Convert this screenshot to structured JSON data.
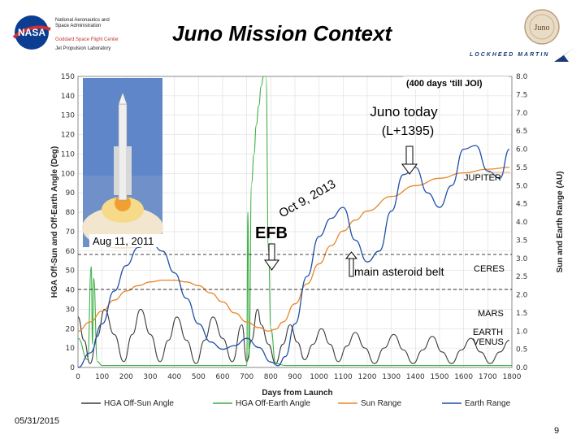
{
  "header": {
    "org_line1": "National Aeronautics and",
    "org_line2": "Space Administration",
    "center_line": "Goddard Space Flight Center",
    "jpl_line": "Jet Propulsion Laboratory",
    "title": "Juno Mission Context",
    "nasa_logo_text": "NASA",
    "juno_badge_text": "Juno",
    "lockheed_text": "LOCKHEED MARTIN"
  },
  "footer": {
    "date": "05/31/2015",
    "page": "9"
  },
  "colors": {
    "hga_sun": "#3a3a3a",
    "hga_earth": "#3cb043",
    "sun_range": "#e8862a",
    "earth_range": "#1f4fa8",
    "grid": "#dddddd"
  },
  "chart_data": {
    "type": "line",
    "xlabel": "Days from Launch",
    "ylabel_left": "HGA Off-Sun and Off-Earth Angle (Deg)",
    "ylabel_right": "Sun and Earth Range (AU)",
    "xlim": [
      0,
      1800
    ],
    "ylim_left": [
      0,
      150
    ],
    "ylim_right": [
      0,
      8
    ],
    "x_ticks": [
      0,
      100,
      200,
      300,
      400,
      500,
      600,
      700,
      800,
      900,
      1000,
      1100,
      1200,
      1300,
      1400,
      1500,
      1600,
      1700,
      1800
    ],
    "y_left_ticks": [
      0,
      10,
      20,
      30,
      40,
      50,
      60,
      70,
      80,
      90,
      100,
      110,
      120,
      130,
      140,
      150
    ],
    "y_right_ticks": [
      "0.0",
      "0.5",
      "1.0",
      "1.5",
      "2.0",
      "2.5",
      "3.0",
      "3.5",
      "4.0",
      "4.5",
      "5.0",
      "5.5",
      "6.0",
      "6.5",
      "7.0",
      "7.5",
      "8.0"
    ],
    "grid": true,
    "legend_position": "bottom",
    "series": [
      {
        "name": "HGA Off-Sun Angle",
        "axis": "left",
        "x": [
          0,
          25,
          50,
          80,
          110,
          150,
          190,
          225,
          260,
          300,
          340,
          375,
          410,
          450,
          490,
          525,
          560,
          600,
          640,
          680,
          700,
          720,
          745,
          760,
          790,
          820,
          850,
          880,
          910,
          940,
          975,
          1010,
          1045,
          1080,
          1115,
          1150,
          1190,
          1230,
          1270,
          1310,
          1350,
          1390,
          1430,
          1470,
          1510,
          1550,
          1590,
          1630,
          1670,
          1710,
          1750,
          1790
        ],
        "y": [
          26,
          14,
          2,
          16,
          30,
          17,
          3,
          17,
          30,
          17,
          3,
          14,
          26,
          14,
          2,
          14,
          26,
          15,
          3,
          22,
          3,
          14,
          30,
          22,
          12,
          2,
          12,
          22,
          13,
          4,
          12,
          20,
          12,
          3,
          11,
          18,
          10,
          2,
          10,
          17,
          9,
          2,
          9,
          16,
          8,
          2,
          9,
          15,
          8,
          2,
          8,
          14
        ]
      },
      {
        "name": "HGA Off-Earth Angle",
        "axis": "left",
        "x": [
          0,
          40,
          55,
          60,
          65,
          80,
          100,
          200,
          300,
          400,
          500,
          600,
          650,
          700,
          705,
          710,
          720,
          730,
          740,
          750,
          760,
          770,
          780,
          790,
          800,
          820,
          860,
          900,
          950,
          1000,
          1100,
          1200,
          1300,
          1400,
          1500,
          1600,
          1700,
          1800
        ],
        "y": [
          15,
          4,
          52,
          12,
          46,
          3,
          1,
          1,
          1,
          1,
          1,
          1,
          1,
          1,
          80,
          5,
          95,
          110,
          125,
          135,
          145,
          150,
          150,
          60,
          20,
          2,
          1,
          1,
          1,
          1,
          1,
          1,
          1,
          1,
          1,
          1,
          1,
          1
        ]
      },
      {
        "name": "Sun Range",
        "axis": "right",
        "x": [
          0,
          50,
          100,
          150,
          200,
          250,
          300,
          350,
          400,
          450,
          500,
          550,
          600,
          650,
          700,
          750,
          790,
          820,
          850,
          900,
          950,
          1000,
          1050,
          1100,
          1150,
          1200,
          1300,
          1400,
          1500,
          1600,
          1700,
          1790
        ],
        "y": [
          1.0,
          1.25,
          1.55,
          1.85,
          2.1,
          2.25,
          2.35,
          2.4,
          2.4,
          2.35,
          2.25,
          2.05,
          1.8,
          1.5,
          1.25,
          1.1,
          1.0,
          1.05,
          1.25,
          1.75,
          2.3,
          2.85,
          3.35,
          3.75,
          4.05,
          4.3,
          4.7,
          5.0,
          5.2,
          5.35,
          5.45,
          5.5
        ]
      },
      {
        "name": "Earth Range",
        "axis": "right",
        "x": [
          0,
          50,
          100,
          150,
          200,
          250,
          300,
          350,
          400,
          450,
          500,
          550,
          600,
          650,
          700,
          750,
          800,
          830,
          860,
          900,
          950,
          1000,
          1050,
          1100,
          1150,
          1200,
          1250,
          1300,
          1350,
          1400,
          1450,
          1500,
          1550,
          1600,
          1650,
          1700,
          1750,
          1790
        ],
        "y": [
          0.0,
          0.4,
          1.2,
          2.1,
          2.8,
          3.3,
          3.45,
          3.2,
          2.6,
          1.9,
          1.2,
          0.7,
          0.5,
          0.6,
          0.8,
          0.55,
          0.15,
          0.05,
          0.3,
          1.2,
          2.5,
          3.6,
          4.1,
          4.4,
          3.5,
          2.9,
          3.2,
          4.3,
          5.3,
          5.5,
          4.8,
          4.4,
          5.0,
          6.0,
          6.1,
          5.4,
          5.2,
          6.0
        ]
      }
    ],
    "annotations": {
      "days_till_joi": "(400 days ‘till JOI)",
      "juno_today_line1": "Juno today",
      "juno_today_line2": "(L+1395)",
      "jupiter": "JUPITER",
      "oct_date": "Oct 9, 2013",
      "efb": "EFB",
      "launch_date": "Aug 11, 2011",
      "asteroid_belt": "main asteroid belt",
      "ceres": "CERES",
      "mars": "MARS",
      "earth": "EARTH",
      "venus": "VENUS"
    }
  }
}
